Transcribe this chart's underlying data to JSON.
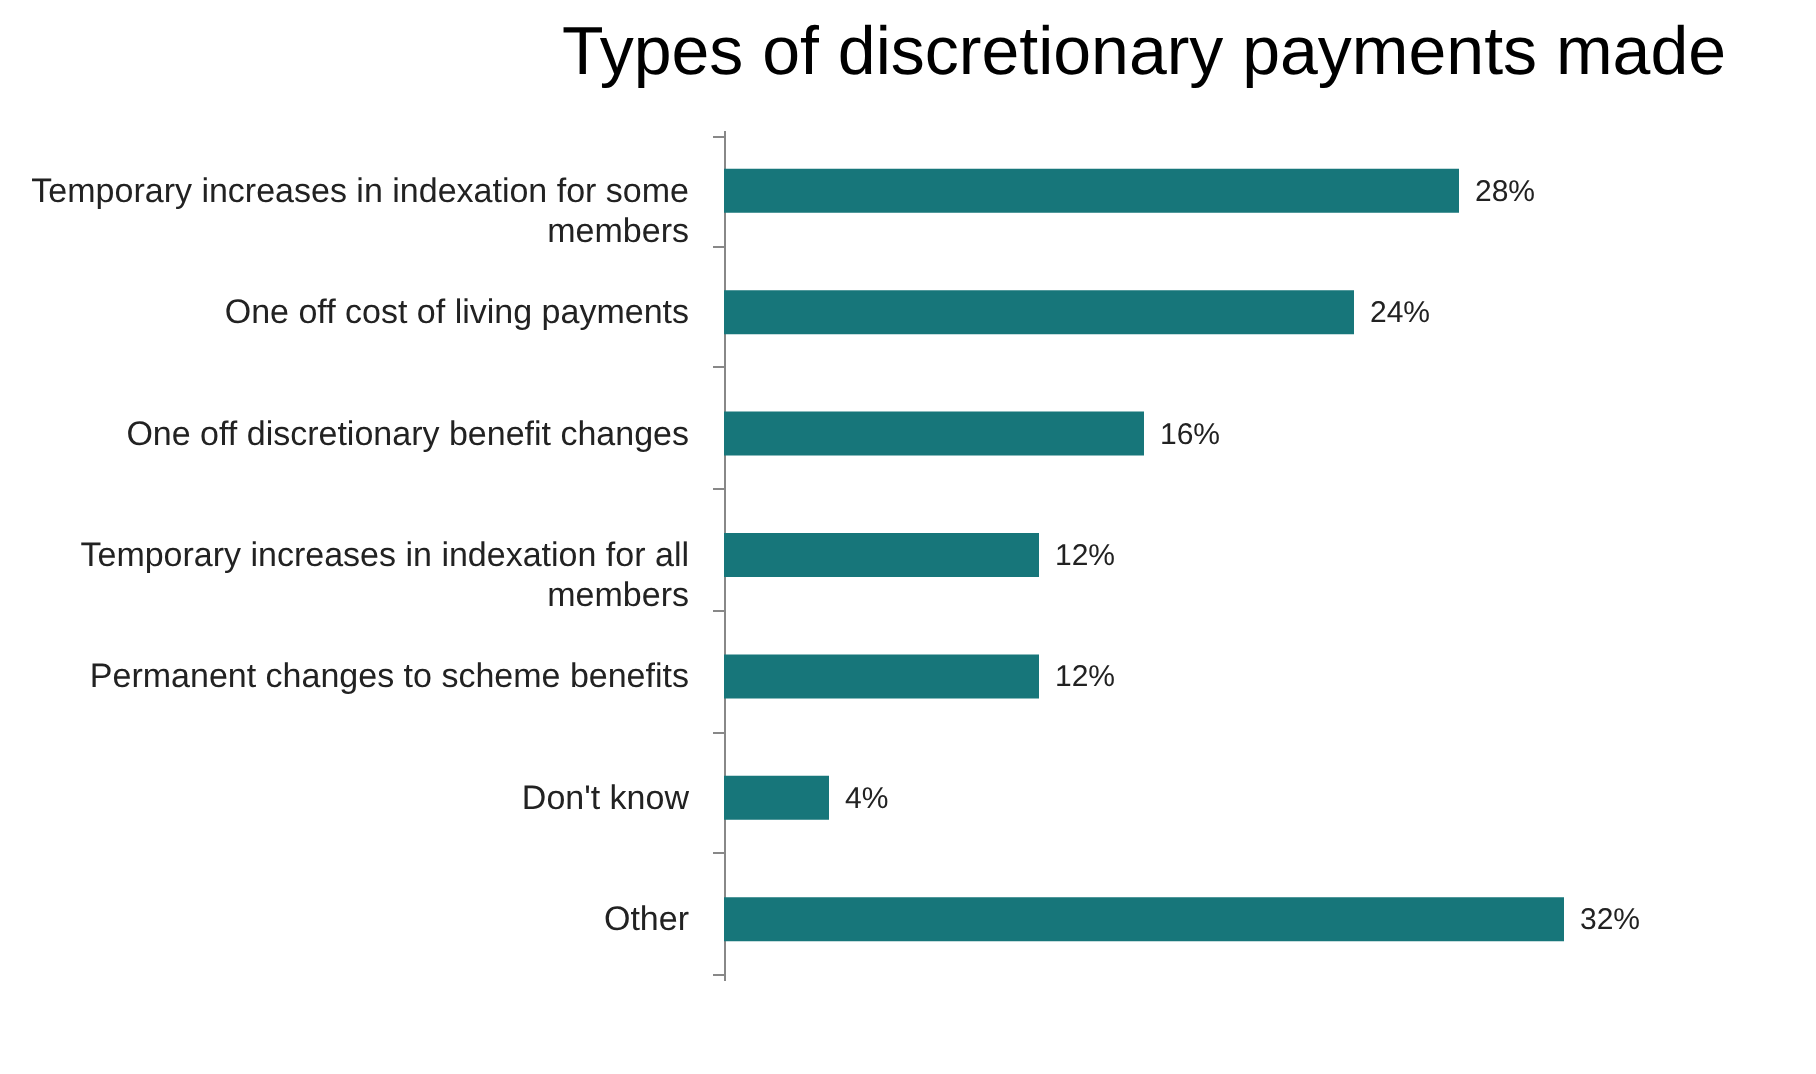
{
  "chart_data": {
    "type": "bar",
    "orientation": "horizontal",
    "title": "Types of discretionary payments made",
    "categories": [
      "Temporary increases in indexation for some members",
      "One off cost of living payments",
      "One off discretionary benefit changes",
      "Temporary increases in indexation for all members",
      "Permanent changes to scheme benefits",
      "Don't know",
      "Other"
    ],
    "values": [
      28,
      24,
      16,
      12,
      12,
      4,
      32
    ],
    "value_labels": [
      "28%",
      "24%",
      "16%",
      "12%",
      "12%",
      "4%",
      "32%"
    ],
    "color": "#17767a",
    "grid": false
  }
}
